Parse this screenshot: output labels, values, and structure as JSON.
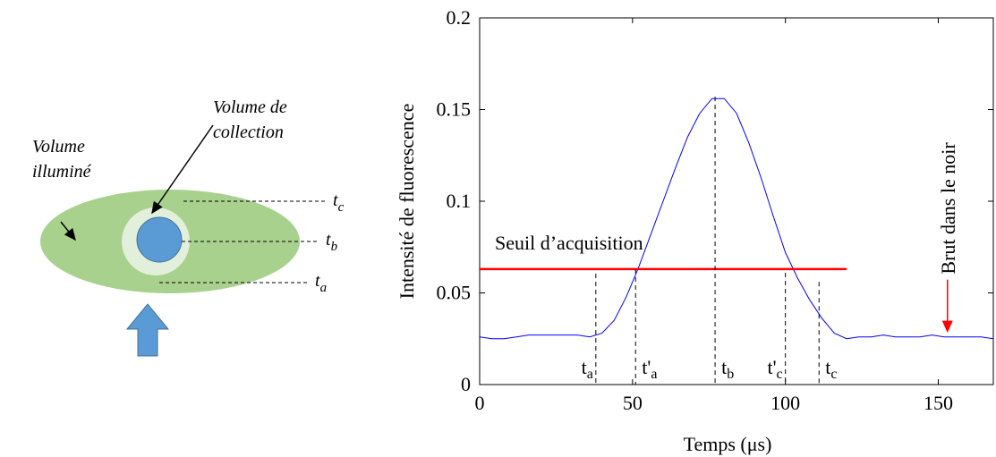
{
  "diagram": {
    "illumine": [
      "Volume",
      "illuminé"
    ],
    "collection": [
      "Volume de",
      "collection"
    ],
    "levels": [
      {
        "label": "t",
        "sub": "c"
      },
      {
        "label": "t",
        "sub": "b"
      },
      {
        "label": "t",
        "sub": "a"
      }
    ]
  },
  "chart_data": {
    "type": "line",
    "x_label": "Temps (μs)",
    "y_label": "Intensité de fluorescence",
    "xlim": [
      0,
      168
    ],
    "ylim": [
      0,
      0.2
    ],
    "xticks": [
      0,
      50,
      100,
      150
    ],
    "yticks": [
      0,
      0.05,
      0.1,
      0.15,
      0.2
    ],
    "x": [
      0,
      4,
      8,
      12,
      16,
      20,
      24,
      28,
      32,
      36,
      40,
      44,
      48,
      52,
      56,
      60,
      64,
      68,
      72,
      76,
      80,
      84,
      88,
      92,
      96,
      100,
      104,
      108,
      112,
      116,
      120,
      124,
      128,
      132,
      136,
      140,
      144,
      148,
      152,
      156,
      160,
      164,
      168
    ],
    "series": [
      {
        "color": "#0000ff",
        "values": [
          0.026,
          0.025,
          0.025,
          0.026,
          0.027,
          0.027,
          0.027,
          0.027,
          0.027,
          0.026,
          0.028,
          0.035,
          0.048,
          0.064,
          0.082,
          0.1,
          0.118,
          0.135,
          0.148,
          0.156,
          0.156,
          0.148,
          0.132,
          0.113,
          0.092,
          0.072,
          0.058,
          0.046,
          0.036,
          0.028,
          0.025,
          0.026,
          0.026,
          0.027,
          0.026,
          0.026,
          0.026,
          0.027,
          0.026,
          0.026,
          0.026,
          0.026,
          0.025
        ]
      }
    ],
    "threshold": {
      "label": "Seuil d’acquisition",
      "value": 0.063,
      "x": [
        0,
        120
      ],
      "color": "#ff0000"
    },
    "markers": [
      {
        "label": "t",
        "sub": "a",
        "x": 38,
        "top": 0.0605
      },
      {
        "label": "t'",
        "sub": "a",
        "x": 51,
        "top": 0.063
      },
      {
        "label": "t",
        "sub": "b",
        "x": 77,
        "top": 0.157
      },
      {
        "label": "t'",
        "sub": "c",
        "x": 100,
        "top": 0.061
      },
      {
        "label": "t",
        "sub": "c",
        "x": 111,
        "top": 0.056
      }
    ],
    "annotation": {
      "text": "Brut dans le noir",
      "x": 153,
      "y": 0.028,
      "color": "#ff0000"
    }
  }
}
